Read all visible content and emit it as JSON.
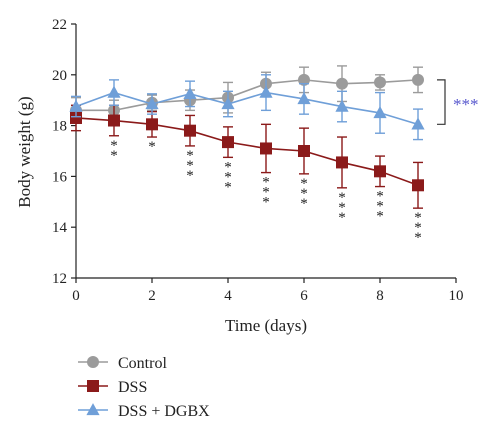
{
  "chart_data": {
    "type": "line",
    "title": "",
    "xlabel": "Time (days)",
    "ylabel": "Body weight (g)",
    "xlim": [
      0,
      10
    ],
    "ylim": [
      12,
      22
    ],
    "x_ticks": [
      0,
      2,
      4,
      6,
      8,
      10
    ],
    "y_ticks": [
      12,
      14,
      16,
      18,
      20,
      22
    ],
    "grid": false,
    "legend_position": "bottom-left",
    "x": [
      0,
      1,
      2,
      3,
      4,
      5,
      6,
      7,
      8,
      9
    ],
    "series": [
      {
        "name": "Control",
        "color": "#9b9b9b",
        "marker": "circle",
        "values": [
          18.6,
          18.6,
          18.9,
          19.0,
          19.1,
          19.65,
          19.8,
          19.65,
          19.7,
          19.8
        ],
        "errors": [
          0.5,
          0.4,
          0.3,
          0.4,
          0.6,
          0.45,
          0.5,
          0.7,
          0.3,
          0.5
        ]
      },
      {
        "name": "DSS",
        "color": "#8b1a1a",
        "marker": "square",
        "values": [
          18.3,
          18.2,
          18.05,
          17.8,
          17.35,
          17.1,
          17.0,
          16.55,
          16.2,
          15.65
        ],
        "errors": [
          0.5,
          0.6,
          0.5,
          0.6,
          0.6,
          0.95,
          0.9,
          1.0,
          0.6,
          0.9
        ]
      },
      {
        "name": "DSS + DGBX",
        "color": "#6f9fd8",
        "marker": "triangle",
        "values": [
          18.75,
          19.3,
          18.85,
          19.25,
          18.85,
          19.3,
          19.05,
          18.75,
          18.5,
          18.05
        ],
        "errors": [
          0.4,
          0.5,
          0.4,
          0.5,
          0.5,
          0.7,
          0.6,
          0.6,
          0.8,
          0.6
        ]
      }
    ],
    "annotations": {
      "dss_significance": [
        {
          "x": 1,
          "label": "**"
        },
        {
          "x": 2,
          "label": "*"
        },
        {
          "x": 3,
          "label": "***"
        },
        {
          "x": 4,
          "label": "***"
        },
        {
          "x": 5,
          "label": "***"
        },
        {
          "x": 6,
          "label": "***"
        },
        {
          "x": 7,
          "label": "***"
        },
        {
          "x": 8,
          "label": "***"
        },
        {
          "x": 9,
          "label": "***"
        }
      ],
      "bracket_label": "***",
      "bracket_color": "#5555cc"
    }
  }
}
